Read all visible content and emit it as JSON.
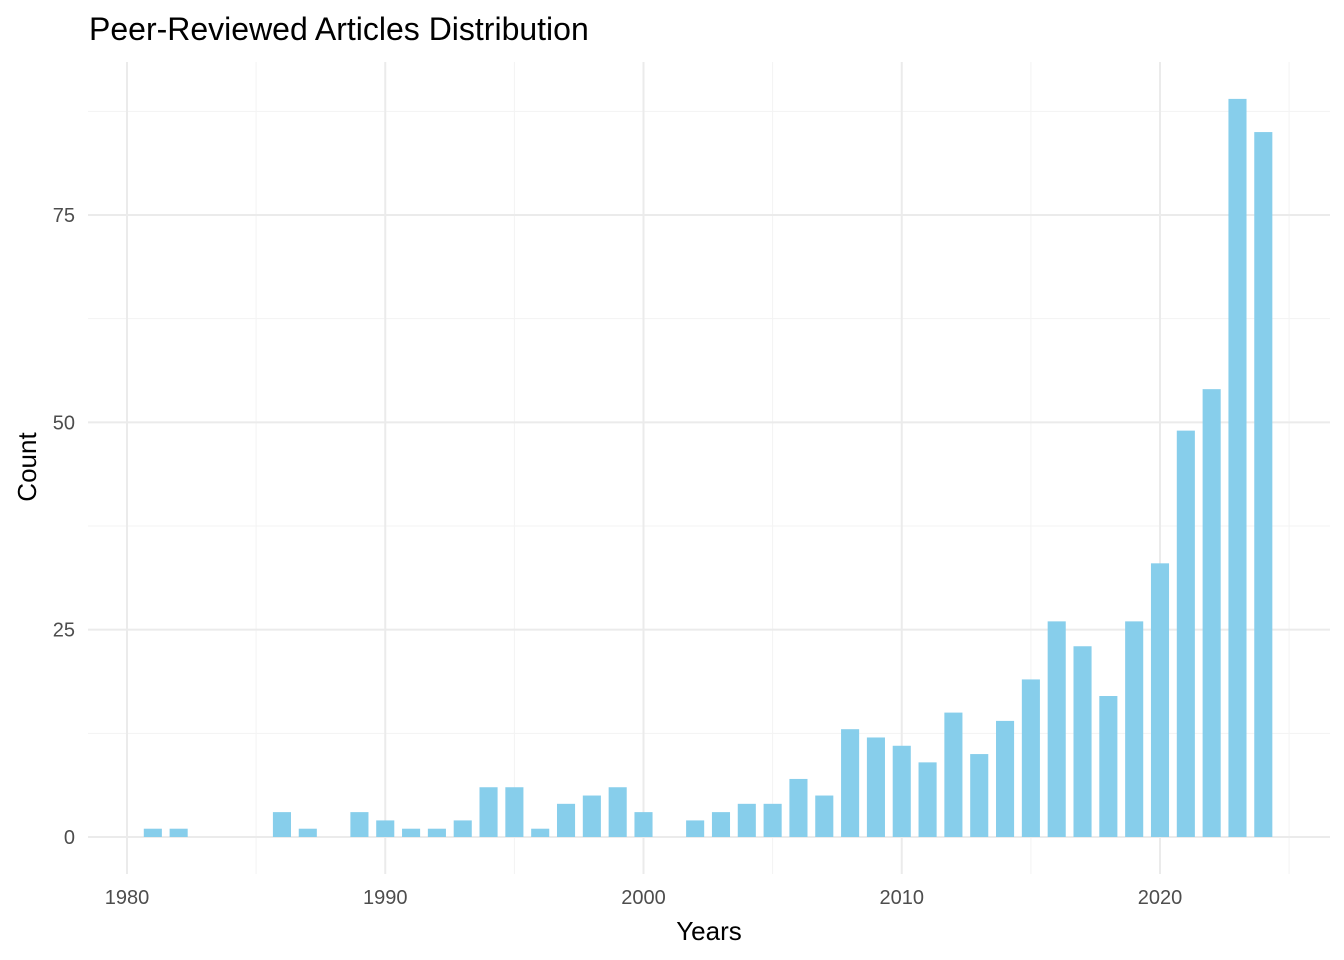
{
  "chart_data": {
    "type": "bar",
    "title": "Peer-Reviewed Articles Distribution",
    "xlabel": "Years",
    "ylabel": "Count",
    "x": [
      1981,
      1982,
      1986,
      1987,
      1989,
      1990,
      1991,
      1992,
      1993,
      1994,
      1995,
      1996,
      1997,
      1998,
      1999,
      2000,
      2002,
      2003,
      2004,
      2005,
      2006,
      2007,
      2008,
      2009,
      2010,
      2011,
      2012,
      2013,
      2014,
      2015,
      2016,
      2017,
      2018,
      2019,
      2020,
      2021,
      2022,
      2023,
      2024
    ],
    "values": [
      1,
      1,
      3,
      1,
      3,
      2,
      1,
      1,
      2,
      6,
      6,
      1,
      4,
      5,
      6,
      3,
      2,
      3,
      4,
      4,
      7,
      5,
      13,
      12,
      11,
      9,
      15,
      10,
      14,
      19,
      26,
      23,
      17,
      26,
      33,
      49,
      54,
      89,
      85
    ],
    "xlim": [
      1979.2,
      1926.8
    ],
    "ylim": [
      0,
      92
    ],
    "x_ticks": [
      "1980",
      "1990",
      "2000",
      "2010",
      "2020"
    ],
    "y_ticks": [
      "0",
      "25",
      "50",
      "75"
    ],
    "bar_color": "#87ceeb",
    "grid": true,
    "legend": "none"
  }
}
